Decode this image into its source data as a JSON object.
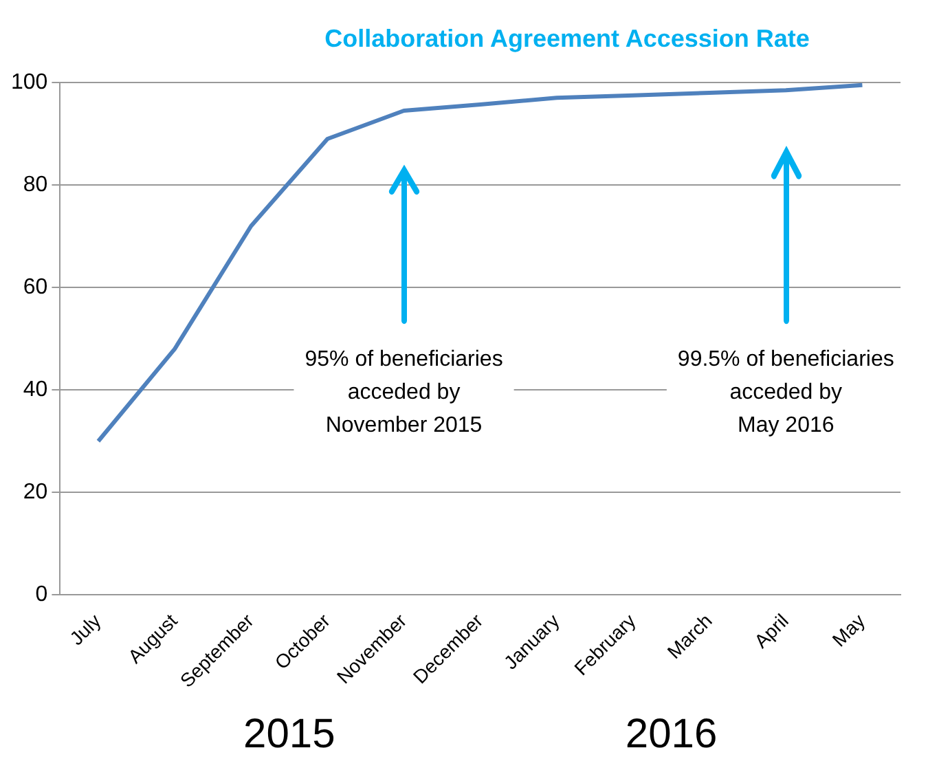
{
  "chart_data": {
    "type": "line",
    "title": "Collaboration  Agreement Accession Rate",
    "categories": [
      "July",
      "August",
      "September",
      "October",
      "November",
      "December",
      "January",
      "February",
      "March",
      "April",
      "May"
    ],
    "series": [
      {
        "color": "#4f81bd",
        "values": [
          30,
          48,
          72,
          89,
          94.5,
          95.7,
          97,
          97.5,
          98,
          98.5,
          99.5
        ]
      }
    ],
    "ylim": [
      0,
      100
    ],
    "yticks": [
      0,
      20,
      40,
      60,
      80,
      100
    ],
    "grid": "y",
    "legend": false,
    "marker": "none",
    "line_style": "solid",
    "annotations": [
      "95% of beneficiaries\nacceded by\nNovember 2015",
      "99.5% of beneficiaries\nacceded by\nMay 2016",
      "2015",
      "2016"
    ]
  }
}
